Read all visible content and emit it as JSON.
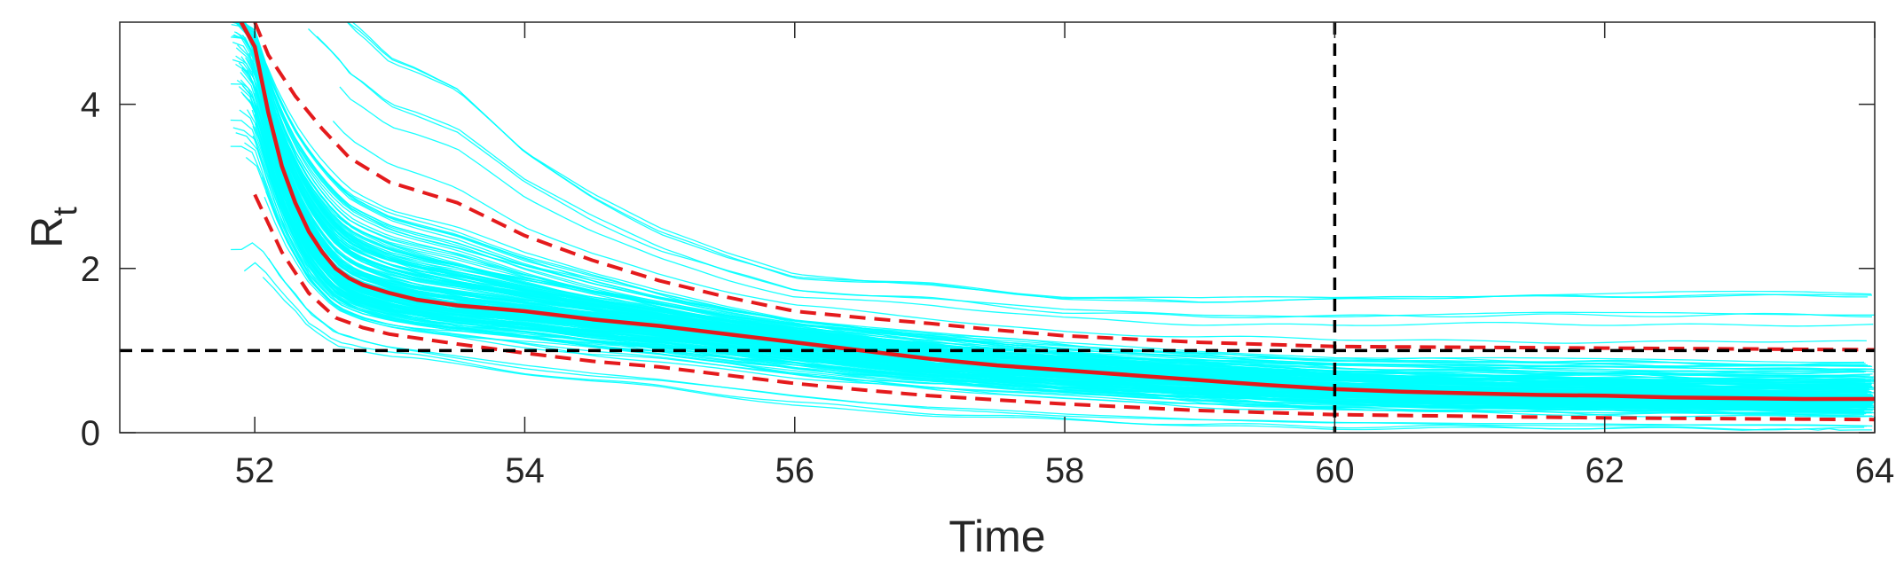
{
  "chart_data": {
    "type": "line",
    "title": "",
    "xlabel": "Time",
    "ylabel": {
      "main": "R",
      "subscript": "t"
    },
    "xlim": [
      51,
      64
    ],
    "ylim": [
      0,
      5
    ],
    "x_ticks": [
      52,
      54,
      56,
      58,
      60,
      62,
      64
    ],
    "x_tick_labels": [
      "52",
      "54",
      "56",
      "58",
      "60",
      "62",
      "64"
    ],
    "y_ticks": [
      0,
      2,
      4
    ],
    "y_tick_labels": [
      "0",
      "2",
      "4"
    ],
    "grid": false,
    "legend": "none",
    "reference_lines": {
      "horizontal": {
        "y": 1,
        "style": "dashed",
        "color": "#000000"
      },
      "vertical": {
        "x": 60,
        "style": "dashed",
        "color": "#000000"
      }
    },
    "ensemble": {
      "color": "#00FFFF",
      "count": 200,
      "description_shape": "individual trajectories decaying from above 5 near t=52 to between 0.05 and 1.3 by t=64"
    },
    "series": [
      {
        "role": "median",
        "style": "solid",
        "color": "#E41A1C",
        "x": [
          51.9,
          52.0,
          52.1,
          52.2,
          52.3,
          52.4,
          52.5,
          52.6,
          52.7,
          52.8,
          53.0,
          53.2,
          53.5,
          54.0,
          54.5,
          55.0,
          55.5,
          56.0,
          56.5,
          57.0,
          57.5,
          58.0,
          58.5,
          59.0,
          59.5,
          60.0,
          60.5,
          61.0,
          61.5,
          62.0,
          62.5,
          63.0,
          63.5,
          64.0
        ],
        "y": [
          5.0,
          4.7,
          3.9,
          3.25,
          2.8,
          2.45,
          2.2,
          2.0,
          1.88,
          1.8,
          1.7,
          1.62,
          1.55,
          1.48,
          1.38,
          1.3,
          1.2,
          1.1,
          1.0,
          0.9,
          0.82,
          0.76,
          0.7,
          0.64,
          0.58,
          0.53,
          0.5,
          0.48,
          0.46,
          0.45,
          0.43,
          0.42,
          0.41,
          0.41
        ]
      },
      {
        "role": "upper-bound",
        "style": "dashed",
        "color": "#E41A1C",
        "x": [
          52.0,
          52.1,
          52.3,
          52.5,
          52.7,
          53.0,
          53.5,
          54.0,
          54.5,
          55.0,
          55.5,
          56.0,
          56.5,
          57.0,
          57.5,
          58.0,
          59.0,
          60.0,
          61.0,
          62.0,
          63.0,
          64.0
        ],
        "y": [
          5.0,
          4.6,
          4.1,
          3.7,
          3.35,
          3.05,
          2.8,
          2.4,
          2.1,
          1.85,
          1.65,
          1.48,
          1.4,
          1.33,
          1.25,
          1.18,
          1.1,
          1.05,
          1.04,
          1.03,
          1.02,
          1.01
        ]
      },
      {
        "role": "lower-bound",
        "style": "dashed",
        "color": "#E41A1C",
        "x": [
          52.0,
          52.2,
          52.4,
          52.6,
          52.8,
          53.0,
          53.5,
          54.0,
          54.5,
          55.0,
          55.5,
          56.0,
          56.5,
          57.0,
          57.5,
          58.0,
          59.0,
          60.0,
          61.0,
          62.0,
          63.0,
          64.0
        ],
        "y": [
          2.9,
          2.2,
          1.7,
          1.4,
          1.28,
          1.2,
          1.08,
          0.97,
          0.87,
          0.8,
          0.7,
          0.6,
          0.52,
          0.45,
          0.4,
          0.35,
          0.27,
          0.22,
          0.2,
          0.18,
          0.17,
          0.16
        ]
      }
    ]
  }
}
